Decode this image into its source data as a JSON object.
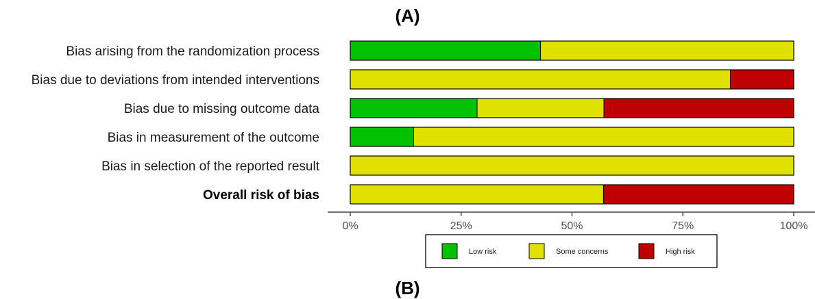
{
  "panel_labels": {
    "top": "(A)",
    "bottom": "(B)"
  },
  "chart_data": {
    "type": "bar",
    "orientation": "horizontal",
    "stacked": true,
    "categories": [
      "Bias arising from the randomization process",
      "Bias due to deviations from intended interventions",
      "Bias due to missing outcome data",
      "Bias in measurement of the outcome",
      "Bias in selection of the reported result",
      "Overall risk of bias"
    ],
    "bold_categories": [
      "Overall risk of bias"
    ],
    "series": [
      {
        "name": "Low risk",
        "color": "#02c100",
        "values": [
          42.9,
          0,
          28.6,
          14.3,
          0,
          0
        ]
      },
      {
        "name": "Some concerns",
        "color": "#e1e100",
        "values": [
          57.1,
          85.7,
          28.6,
          85.7,
          100,
          57.1
        ]
      },
      {
        "name": "High risk",
        "color": "#bf0000",
        "values": [
          0,
          14.3,
          42.8,
          0,
          0,
          42.9
        ]
      }
    ],
    "xlim": [
      0,
      100
    ],
    "xticks": [
      0,
      25,
      50,
      75,
      100
    ],
    "xtick_labels": [
      "0%",
      "25%",
      "50%",
      "75%",
      "100%"
    ],
    "legend_position": "bottom",
    "grid": false
  }
}
